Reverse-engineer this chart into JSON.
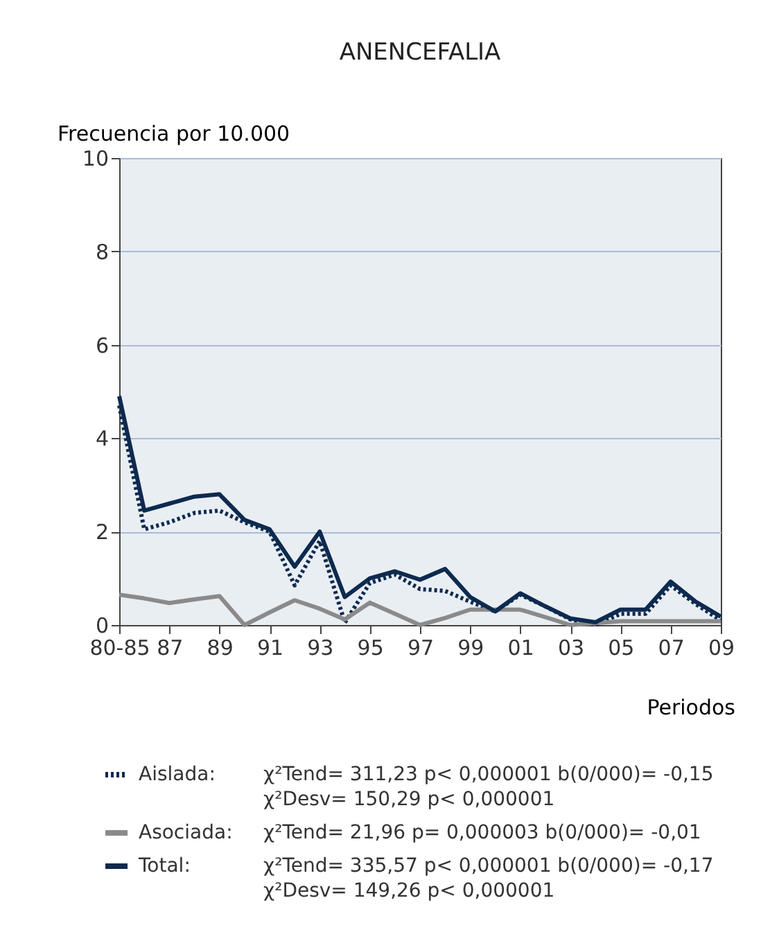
{
  "chart_data": {
    "type": "line",
    "title": "ANENCEFALIA",
    "ylabel": "Frecuencia por 10.000",
    "xlabel": "Periodos",
    "categories": [
      "80-85",
      null,
      "87",
      null,
      "89",
      null,
      "91",
      null,
      "93",
      null,
      "95",
      null,
      "97",
      null,
      "99",
      null,
      "01",
      null,
      "03",
      null,
      "05",
      null,
      "07",
      null,
      "09"
    ],
    "series": [
      {
        "name": "Aislada:",
        "color": "#0d2a4f",
        "line_style": "dotted",
        "values": [
          4.7,
          2.05,
          2.2,
          2.4,
          2.45,
          2.2,
          2.0,
          0.85,
          1.8,
          0.05,
          0.9,
          1.08,
          0.77,
          0.73,
          0.5,
          0.29,
          0.65,
          0.4,
          0.12,
          0.0,
          0.24,
          0.24,
          0.85,
          0.45,
          0.1
        ]
      },
      {
        "name": "Asociada:",
        "color": "#8a8a8a",
        "line_style": "solid",
        "values": [
          0.65,
          0.57,
          0.47,
          0.55,
          0.62,
          0.0,
          0.27,
          0.53,
          0.35,
          0.12,
          0.48,
          0.24,
          0.0,
          0.15,
          0.33,
          0.33,
          0.33,
          0.17,
          0.0,
          0.04,
          0.08,
          0.08,
          0.08,
          0.08,
          0.08
        ]
      },
      {
        "name": "Total:",
        "color": "#0d2a4f",
        "line_style": "solid",
        "values": [
          4.9,
          2.45,
          2.6,
          2.75,
          2.8,
          2.25,
          2.05,
          1.25,
          2.0,
          0.6,
          1.0,
          1.15,
          0.97,
          1.2,
          0.6,
          0.29,
          0.68,
          0.4,
          0.14,
          0.06,
          0.33,
          0.33,
          0.93,
          0.5,
          0.18
        ]
      }
    ],
    "ylim": [
      0,
      10
    ],
    "yticks": [
      0,
      2,
      4,
      6,
      8,
      10
    ],
    "grid": "y",
    "legend": "bottom",
    "marker": "none",
    "annotations": [
      "χ²Tend= 311,23 p< 0,000001 b(0/000)= -0,15",
      "χ²Desv= 150,29 p< 0,000001",
      "χ²Tend= 21,96 p= 0,000003 b(0/000)= -0,01",
      "χ²Tend= 335,57 p< 0,000001 b(0/000)= -0,17",
      "χ²Desv= 149,26 p< 0,000001"
    ]
  }
}
